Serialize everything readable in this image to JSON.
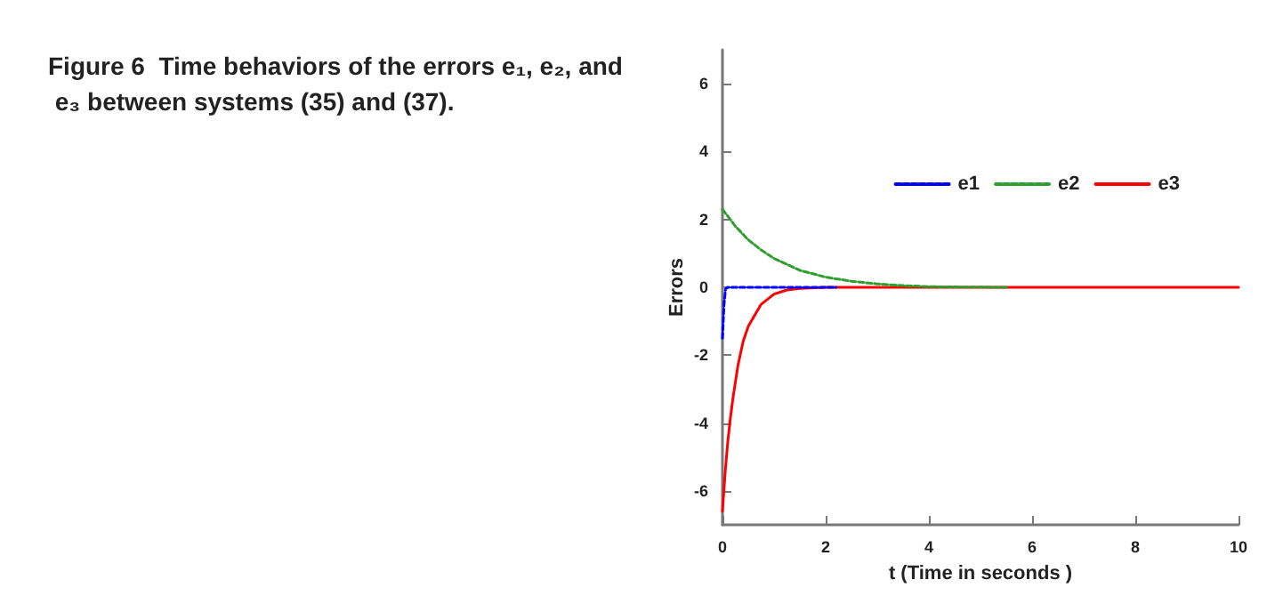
{
  "chart_data": {
    "type": "line",
    "title": "Figure 6  Time behaviors of the errors e₁, e₂, and e₃ between systems (35) and (37).",
    "xlabel": "t (Time in seconds )",
    "ylabel": "Errors",
    "xlim": [
      0,
      10
    ],
    "xticks": [
      0,
      2,
      4,
      6,
      8,
      10
    ],
    "ylim": [
      -7,
      7
    ],
    "yticks": [
      -6,
      -4,
      -2,
      0,
      2,
      4,
      6
    ],
    "grid": false,
    "legend": "top right",
    "marker": "none",
    "series": [
      {
        "name": "e1",
        "color": "#0000ff",
        "line_style": "dashed",
        "x": [
          0,
          0.03,
          0.06,
          0.1,
          1,
          2.2
        ],
        "values": [
          -1.5,
          -0.5,
          -0.05,
          0,
          0,
          0
        ]
      },
      {
        "name": "e2",
        "color": "#2e9e2e",
        "line_style": "dashed",
        "x": [
          0,
          0.25,
          0.5,
          0.75,
          1,
          1.5,
          2,
          2.5,
          3,
          3.5,
          4,
          4.5,
          5.5
        ],
        "values": [
          2.3,
          1.8,
          1.4,
          1.1,
          0.85,
          0.5,
          0.3,
          0.18,
          0.1,
          0.05,
          0.02,
          0.01,
          0
        ]
      },
      {
        "name": "e3",
        "color": "#ff0000",
        "line_style": "solid",
        "x": [
          0,
          0.05,
          0.1,
          0.15,
          0.2,
          0.3,
          0.4,
          0.5,
          0.75,
          1,
          1.25,
          1.5,
          2,
          10
        ],
        "values": [
          -6.6,
          -5.5,
          -4.6,
          -3.9,
          -3.3,
          -2.3,
          -1.6,
          -1.15,
          -0.5,
          -0.2,
          -0.08,
          -0.03,
          0,
          0
        ]
      }
    ]
  }
}
